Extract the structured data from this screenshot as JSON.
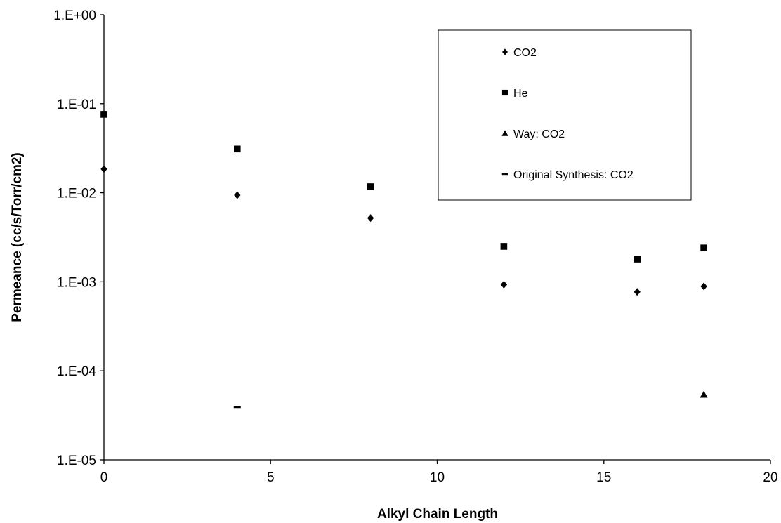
{
  "chart_data": {
    "type": "scatter",
    "title": "",
    "xlabel": "Alkyl Chain Length",
    "ylabel": "Permeance (cc/s/Torr/cm2)",
    "xlim": [
      0,
      20
    ],
    "ylim": [
      1e-05,
      1
    ],
    "y_scale": "log",
    "x_ticks": [
      0,
      5,
      10,
      15,
      20
    ],
    "x_tick_labels": [
      "0",
      "5",
      "10",
      "15",
      "20"
    ],
    "y_ticks": [
      1,
      0.1,
      0.01,
      0.001,
      0.0001,
      1e-05
    ],
    "y_tick_labels": [
      "1.E+00",
      "1.E-01",
      "1.E-02",
      "1.E-03",
      "1.E-04",
      "1.E-05"
    ],
    "grid": false,
    "legend_position": "top-right",
    "series": [
      {
        "name": "CO2",
        "marker": "diamond",
        "color": "#000000",
        "x": [
          0,
          4,
          8,
          12,
          16,
          18
        ],
        "y": [
          0.0185,
          0.0094,
          0.0052,
          0.00093,
          0.00077,
          0.00089
        ]
      },
      {
        "name": "He",
        "marker": "square",
        "color": "#000000",
        "x": [
          0,
          4,
          8,
          12,
          16,
          18
        ],
        "y": [
          0.076,
          0.031,
          0.0117,
          0.0025,
          0.0018,
          0.0024
        ]
      },
      {
        "name": "Way: CO2",
        "marker": "triangle",
        "color": "#000000",
        "x": [
          18
        ],
        "y": [
          5.4e-05
        ]
      },
      {
        "name": "Original Synthesis: CO2",
        "marker": "dash",
        "color": "#000000",
        "x": [
          4
        ],
        "y": [
          3.9e-05
        ]
      }
    ]
  }
}
